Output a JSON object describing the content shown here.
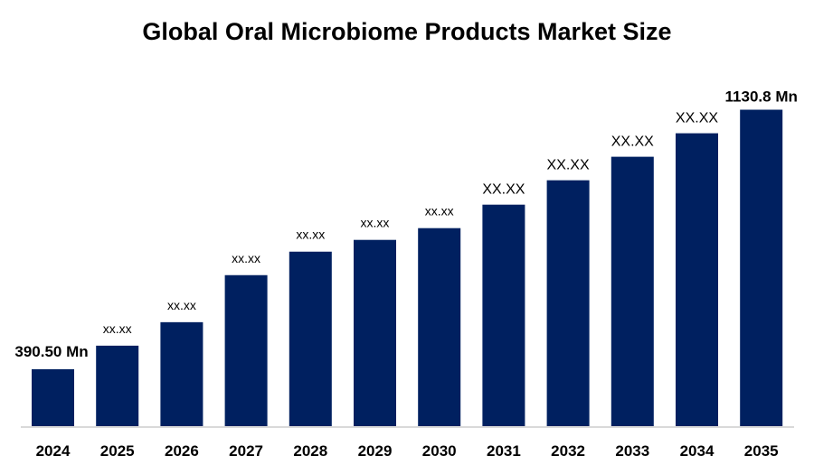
{
  "chart_data": {
    "type": "bar",
    "title": "Global Oral Microbiome Products Market Size",
    "xlabel": "",
    "ylabel": "",
    "categories": [
      "2024",
      "2025",
      "2026",
      "2027",
      "2028",
      "2029",
      "2030",
      "2031",
      "2032",
      "2033",
      "2034",
      "2035"
    ],
    "values": [
      390.5,
      457.6,
      524.6,
      658.8,
      725.8,
      759.4,
      792.9,
      859.9,
      929.5,
      996.6,
      1063.6,
      1130.8
    ],
    "data_labels": [
      "390.50 Mn",
      "xx.xx",
      "xx.xx",
      "xx.xx",
      "xx.xx",
      "xx.xx",
      "xx.xx",
      "XX.XX",
      "XX.XX",
      "XX.XX",
      "XX.XX",
      "1130.8 Mn"
    ],
    "ylim": [
      228,
      1230
    ],
    "grid": false,
    "legend": "none",
    "bar_color": "#002060",
    "axis_color": "#d9d9d9"
  }
}
